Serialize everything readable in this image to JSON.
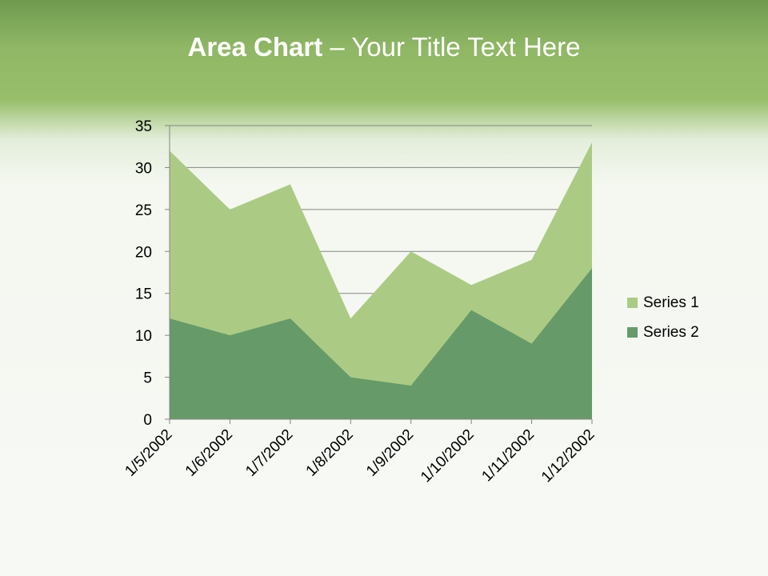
{
  "title": {
    "bold": "Area Chart",
    "rest": " – Your Title Text Here"
  },
  "chart_data": {
    "type": "area",
    "categories": [
      "1/5/2002",
      "1/6/2002",
      "1/7/2002",
      "1/8/2002",
      "1/9/2002",
      "1/10/2002",
      "1/11/2002",
      "1/12/2002"
    ],
    "series": [
      {
        "name": "Series 1",
        "values": [
          32,
          25,
          28,
          12,
          20,
          16,
          19,
          33
        ],
        "color": "#abcb84"
      },
      {
        "name": "Series 2",
        "values": [
          12,
          10,
          12,
          5,
          4,
          13,
          9,
          18
        ],
        "color": "#669a69"
      }
    ],
    "ylim": [
      0,
      35
    ],
    "yticks": [
      0,
      5,
      10,
      15,
      20,
      25,
      30,
      35
    ],
    "grid": true,
    "legend": "right"
  }
}
